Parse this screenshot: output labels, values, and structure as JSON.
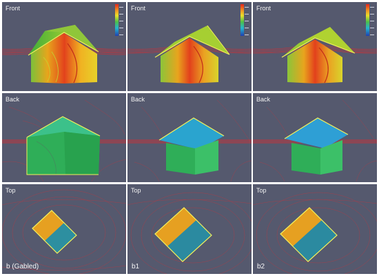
{
  "columns": [
    {
      "case_label": "b (Gabled)",
      "rows": [
        {
          "view": "Front"
        },
        {
          "view": "Back"
        },
        {
          "view": "Top"
        }
      ]
    },
    {
      "case_label": "b1",
      "rows": [
        {
          "view": "Front"
        },
        {
          "view": "Back"
        },
        {
          "view": "Top"
        }
      ]
    },
    {
      "case_label": "b2",
      "rows": [
        {
          "view": "Front"
        },
        {
          "view": "Back"
        },
        {
          "view": "Top"
        }
      ]
    }
  ],
  "colors": {
    "background": "#55596e",
    "streamline": "#e8262a",
    "high": "#e3261d",
    "mid": "#eadf2a",
    "low": "#1f3fb0"
  }
}
